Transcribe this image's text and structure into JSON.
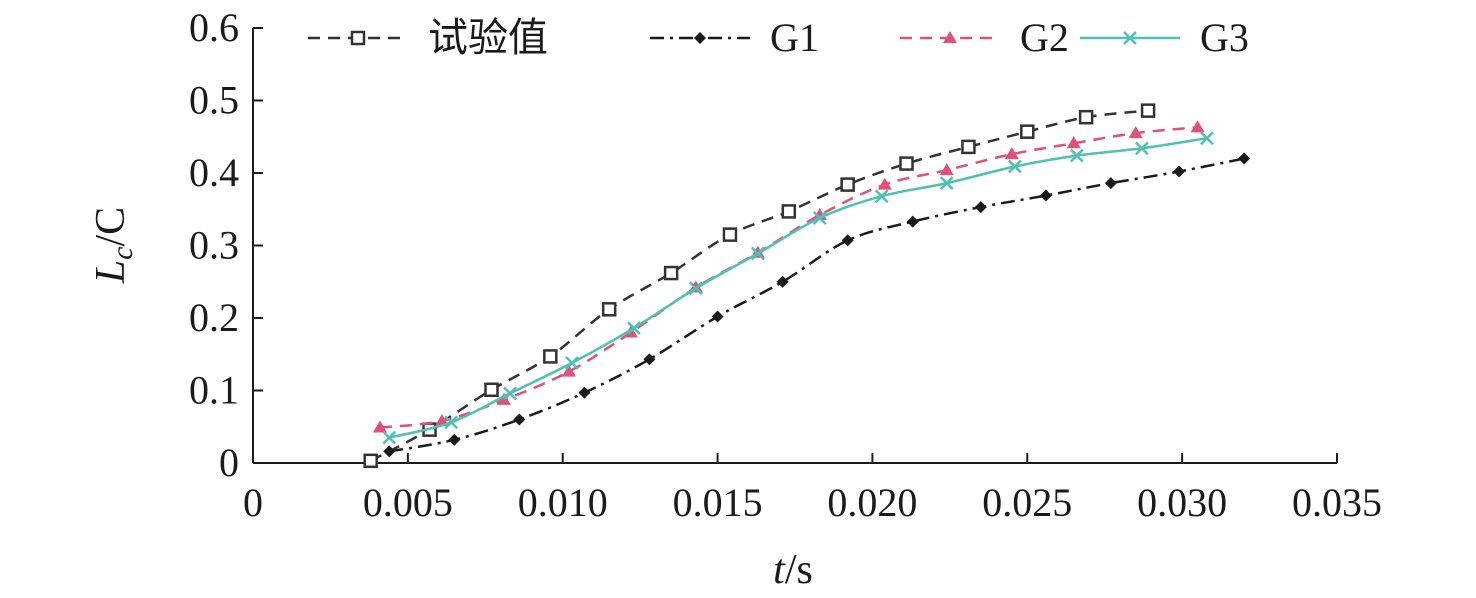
{
  "chart_data": {
    "type": "line",
    "title": "",
    "xlabel": "t/s",
    "xlabel_italic": "t",
    "xlabel_unit": "/s",
    "ylabel_main": "L",
    "ylabel_sub": "c",
    "ylabel_rest": "/C",
    "xlim": [
      0,
      0.035
    ],
    "ylim": [
      0,
      0.6
    ],
    "xticks": [
      0,
      0.005,
      0.01,
      0.015,
      0.02,
      0.025,
      0.03,
      0.035
    ],
    "xtick_labels": [
      "0",
      "0.005",
      "0.010",
      "0.015",
      "0.020",
      "0.025",
      "0.030",
      "0.035"
    ],
    "yticks": [
      0,
      0.1,
      0.2,
      0.3,
      0.4,
      0.5,
      0.6
    ],
    "ytick_labels": [
      "0",
      "0.1",
      "0.2",
      "0.3",
      "0.4",
      "0.5",
      "0.6"
    ],
    "grid": false,
    "legend_position": "top",
    "series": [
      {
        "name": "试验值",
        "color": "#333333",
        "marker": "open-square",
        "line_style": "dashed",
        "x": [
          0.0038,
          0.0057,
          0.0077,
          0.0096,
          0.0115,
          0.0135,
          0.0154,
          0.0173,
          0.0192,
          0.0211,
          0.0231,
          0.025,
          0.0269,
          0.0289
        ],
        "y": [
          0.003,
          0.046,
          0.101,
          0.147,
          0.212,
          0.262,
          0.315,
          0.347,
          0.384,
          0.413,
          0.436,
          0.457,
          0.477,
          0.486
        ]
      },
      {
        "name": "G1",
        "color": "#1a1a1a",
        "marker": "filled-diamond",
        "line_style": "dashdot",
        "x": [
          0.0044,
          0.0065,
          0.0086,
          0.0107,
          0.0128,
          0.015,
          0.0171,
          0.0192,
          0.0213,
          0.0235,
          0.0256,
          0.0277,
          0.0299,
          0.032
        ],
        "y": [
          0.016,
          0.032,
          0.06,
          0.097,
          0.143,
          0.202,
          0.25,
          0.307,
          0.333,
          0.353,
          0.369,
          0.386,
          0.402,
          0.42
        ]
      },
      {
        "name": "G2",
        "color": "#e0507a",
        "marker": "filled-triangle",
        "line_style": "dashed",
        "x": [
          0.0041,
          0.0061,
          0.0081,
          0.0102,
          0.0122,
          0.0143,
          0.0163,
          0.0183,
          0.0204,
          0.0224,
          0.0245,
          0.0265,
          0.0285,
          0.0305
        ],
        "y": [
          0.049,
          0.058,
          0.087,
          0.126,
          0.18,
          0.242,
          0.29,
          0.342,
          0.384,
          0.404,
          0.426,
          0.441,
          0.455,
          0.463
        ]
      },
      {
        "name": "G3",
        "color": "#4cc1b4",
        "marker": "x",
        "line_style": "solid",
        "x": [
          0.0044,
          0.0064,
          0.0083,
          0.0103,
          0.0123,
          0.0143,
          0.0163,
          0.0183,
          0.0203,
          0.0224,
          0.0246,
          0.0266,
          0.0287,
          0.0308
        ],
        "y": [
          0.035,
          0.056,
          0.096,
          0.138,
          0.186,
          0.241,
          0.289,
          0.338,
          0.368,
          0.386,
          0.409,
          0.424,
          0.434,
          0.448
        ]
      }
    ]
  }
}
